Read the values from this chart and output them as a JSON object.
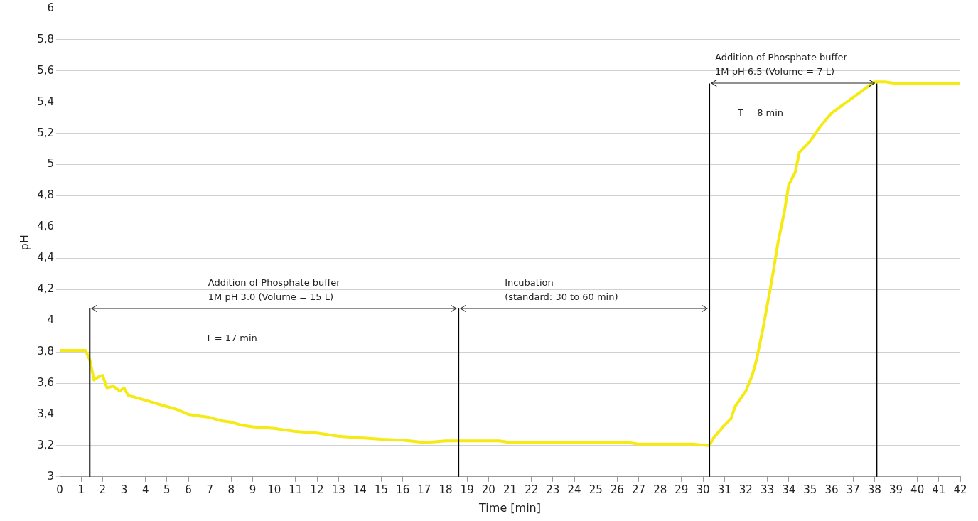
{
  "chart_data": {
    "type": "line",
    "xlabel": "Time [min]",
    "ylabel": "pH",
    "x": [
      0,
      1.2,
      1.4,
      1.6,
      1.8,
      2.0,
      2.2,
      2.5,
      2.8,
      3.0,
      3.2,
      3.5,
      4,
      4.5,
      5,
      5.5,
      6,
      6.5,
      7,
      7.5,
      8,
      8.5,
      9,
      10,
      11,
      12,
      13,
      14,
      15,
      16,
      17,
      17.5,
      18,
      19,
      20.5,
      21,
      22,
      26.5,
      27,
      29.5,
      30.3,
      30.5,
      31,
      31.3,
      31.5,
      32,
      32.3,
      32.5,
      32.8,
      33,
      33.2,
      33.5,
      33.8,
      34,
      34.3,
      34.5,
      35,
      35.5,
      36,
      36.5,
      37,
      37.5,
      38,
      38.5,
      39,
      42
    ],
    "series": [
      {
        "color": "#f5ea14",
        "values": [
          3.81,
          3.81,
          3.75,
          3.62,
          3.64,
          3.65,
          3.57,
          3.58,
          3.55,
          3.57,
          3.52,
          3.51,
          3.49,
          3.47,
          3.45,
          3.43,
          3.4,
          3.39,
          3.38,
          3.36,
          3.35,
          3.33,
          3.32,
          3.31,
          3.29,
          3.28,
          3.26,
          3.25,
          3.24,
          3.235,
          3.22,
          3.225,
          3.23,
          3.23,
          3.23,
          3.22,
          3.22,
          3.22,
          3.21,
          3.21,
          3.2,
          3.25,
          3.33,
          3.37,
          3.45,
          3.55,
          3.65,
          3.75,
          3.95,
          4.1,
          4.25,
          4.5,
          4.7,
          4.87,
          4.95,
          5.08,
          5.15,
          5.25,
          5.33,
          5.38,
          5.43,
          5.48,
          5.53,
          5.53,
          5.52,
          5.52
        ]
      }
    ],
    "xlim": [
      0,
      42
    ],
    "xticks": [
      0,
      1,
      2,
      3,
      4,
      5,
      6,
      7,
      8,
      9,
      10,
      11,
      12,
      13,
      14,
      15,
      16,
      17,
      18,
      19,
      20,
      21,
      22,
      23,
      24,
      25,
      26,
      27,
      28,
      29,
      30,
      31,
      32,
      33,
      34,
      35,
      36,
      37,
      38,
      39,
      40,
      41,
      42
    ],
    "ylim": [
      3,
      6
    ],
    "yticks": [
      3,
      {
        "value": 3.2,
        "label": "3,2"
      },
      {
        "value": 3.4,
        "label": "3,4"
      },
      {
        "value": 3.6,
        "label": "3,6"
      },
      {
        "value": 3.8,
        "label": "3,8"
      },
      4,
      {
        "value": 4.2,
        "label": "4,2"
      },
      {
        "value": 4.4,
        "label": "4,4"
      },
      {
        "value": 4.6,
        "label": "4,6"
      },
      {
        "value": 4.8,
        "label": "4,8"
      },
      5,
      {
        "value": 5.2,
        "label": "5,2"
      },
      {
        "value": 5.4,
        "label": "5,4"
      },
      {
        "value": 5.6,
        "label": "5,6"
      },
      {
        "value": 5.8,
        "label": "5,8"
      },
      6
    ],
    "grid": "y",
    "legend": false,
    "marker": "none",
    "line_style": "solid",
    "ref_lines": [
      {
        "axis": "x",
        "value": 1.4,
        "color": "#000000"
      },
      {
        "axis": "x",
        "value": 18.6,
        "color": "#000000"
      },
      {
        "axis": "x",
        "value": 30.3,
        "color": "#000000"
      },
      {
        "axis": "x",
        "value": 38.1,
        "color": "#000000"
      }
    ],
    "annotations": [
      "Addition of Phosphate buffer\n1M pH 3.0 (Volume = 15 L)",
      "Incubation\n(standard: 30 to 60 min)",
      "Addition of Phosphate buffer\n1M pH 6.5 (Volume = 7 L)",
      "T = 17 min",
      "T = 8 min"
    ]
  }
}
